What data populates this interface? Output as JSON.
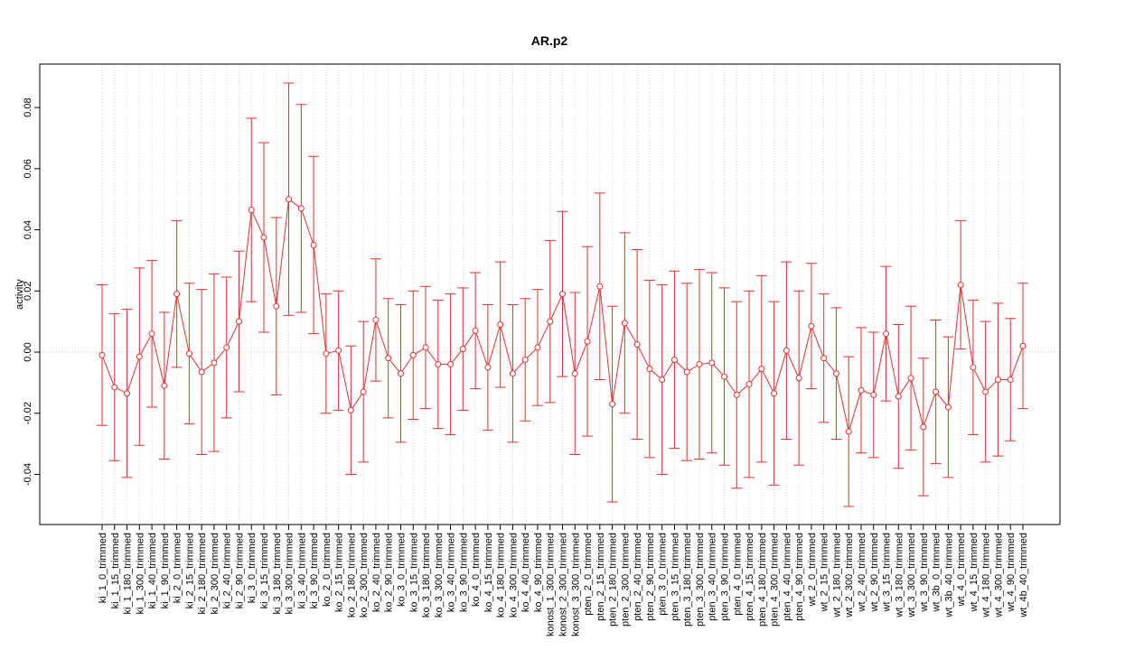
{
  "chart_data": {
    "type": "errorbar",
    "title": "AR.p2",
    "y_label": "activity",
    "categories": [
      "ki_1_0_trimmed",
      "ki_1_15_trimmed",
      "ki_1_180_trimmed",
      "ki_1_300_trimmed",
      "ki_1_40_trimmed",
      "ki_1_90_trimmed",
      "ki_2_0_trimmed",
      "ki_2_15_trimmed",
      "ki_2_180_trimmed",
      "ki_2_300_trimmed",
      "ki_2_40_trimmed",
      "ki_2_90_trimmed",
      "ki_3_0_trimmed",
      "ki_3_15_trimmed",
      "ki_3_180_trimmed",
      "ki_3_300_trimmed",
      "ki_3_40_trimmed",
      "ki_3_90_trimmed",
      "ko_2_0_trimmed",
      "ko_2_15_trimmed",
      "ko_2_180_trimmed",
      "ko_2_300_trimmed",
      "ko_2_40_trimmed",
      "ko_2_90_trimmed",
      "ko_3_0_trimmed",
      "ko_3_15_trimmed",
      "ko_3_180_trimmed",
      "ko_3_300_trimmed",
      "ko_3_40_trimmed",
      "ko_3_90_trimmed",
      "ko_4_0_trimmed",
      "ko_4_15_trimmed",
      "ko_4_180_trimmed",
      "ko_4_300_trimmed",
      "ko_4_40_trimmed",
      "ko_4_90_trimmed",
      "konost_1_300_trimmed",
      "konost_2_300_trimmed",
      "konost_3_300_trimmed",
      "pten_2_0_trimmed",
      "pten_2_15_trimmed",
      "pten_2_180_trimmed",
      "pten_2_300_trimmed",
      "pten_2_40_trimmed",
      "pten_2_90_trimmed",
      "pten_3_0_trimmed",
      "pten_3_15_trimmed",
      "pten_3_180_trimmed",
      "pten_3_300_trimmed",
      "pten_3_40_trimmed",
      "pten_3_90_trimmed",
      "pten_4_0_trimmed",
      "pten_4_15_trimmed",
      "pten_4_180_trimmed",
      "pten_4_300_trimmed",
      "pten_4_40_trimmed",
      "pten_4_90_trimmed",
      "wt_2_0_trimmed",
      "wt_2_15_trimmed",
      "wt_2_180_trimmed",
      "wt_2_300_trimmed",
      "wt_2_40_trimmed",
      "wt_2_90_trimmed",
      "wt_3_15_trimmed",
      "wt_3_180_trimmed",
      "wt_3_300_trimmed",
      "wt_3_90_trimmed",
      "wt_3b_0_trimmed",
      "wt_3b_40_trimmed",
      "wt_4_0_trimmed",
      "wt_4_15_trimmed",
      "wt_4_180_trimmed",
      "wt_4_300_trimmed",
      "wt_4_90_trimmed",
      "wt_4b_40_trimmed"
    ],
    "series": [
      {
        "color": "#e8302f",
        "values": [
          -0.001,
          -0.0115,
          -0.0135,
          -0.0015,
          0.006,
          -0.011,
          0.019,
          -0.0005,
          -0.0065,
          -0.0035,
          0.0015,
          0.01,
          0.0465,
          0.0375,
          0.015,
          0.05,
          0.047,
          0.035,
          -0.0005,
          0.0005,
          -0.019,
          -0.013,
          0.0105,
          -0.002,
          -0.007,
          -0.001,
          0.0015,
          -0.004,
          -0.004,
          0.001,
          0.007,
          -0.005,
          0.009,
          -0.007,
          -0.0025,
          0.0015,
          0.01,
          0.019,
          -0.007,
          0.0035,
          0.0215,
          -0.017,
          0.0095,
          0.0025,
          -0.0055,
          -0.009,
          -0.0025,
          -0.0065,
          -0.004,
          -0.0035,
          -0.008,
          -0.014,
          -0.0105,
          -0.0055,
          -0.0135,
          0.0005,
          -0.0085,
          0.0085,
          -0.002,
          -0.007,
          -0.026,
          -0.0125,
          -0.014,
          0.006,
          -0.0145,
          -0.0085,
          -0.0245,
          -0.013,
          -0.018,
          0.022,
          -0.005,
          -0.013,
          -0.009,
          -0.009,
          0.002
        ],
        "errors": [
          0.023,
          0.024,
          0.0275,
          0.029,
          0.024,
          0.024,
          0.024,
          0.023,
          0.027,
          0.029,
          0.023,
          0.023,
          0.03,
          0.031,
          0.029,
          0.038,
          0.034,
          0.029,
          0.0195,
          0.0195,
          0.021,
          0.023,
          0.02,
          0.0195,
          0.0225,
          0.021,
          0.02,
          0.021,
          0.023,
          0.02,
          0.019,
          0.0205,
          0.0205,
          0.0225,
          0.02,
          0.019,
          0.0265,
          0.027,
          0.0265,
          0.031,
          0.0305,
          0.032,
          0.0295,
          0.031,
          0.029,
          0.031,
          0.029,
          0.029,
          0.031,
          0.0295,
          0.029,
          0.0305,
          0.0305,
          0.0305,
          0.03,
          0.029,
          0.0285,
          0.0205,
          0.021,
          0.0215,
          0.0245,
          0.0205,
          0.0205,
          0.022,
          0.0235,
          0.0235,
          0.0225,
          0.0235,
          0.023,
          0.021,
          0.022,
          0.023,
          0.025,
          0.02,
          0.0205
        ]
      }
    ],
    "ylim": [
      -0.0564,
      0.0942
    ],
    "yticks": [
      {
        "value": -0.04,
        "label": "-0.04"
      },
      {
        "value": -0.02,
        "label": "-0.02"
      },
      {
        "value": 0,
        "label": "0.00"
      },
      {
        "value": 0.02,
        "label": "0.02"
      },
      {
        "value": 0.04,
        "label": "0.04"
      },
      {
        "value": 0.06,
        "label": "0.06"
      },
      {
        "value": 0.08,
        "label": "0.08"
      }
    ],
    "hline": 0,
    "grid": "x"
  }
}
